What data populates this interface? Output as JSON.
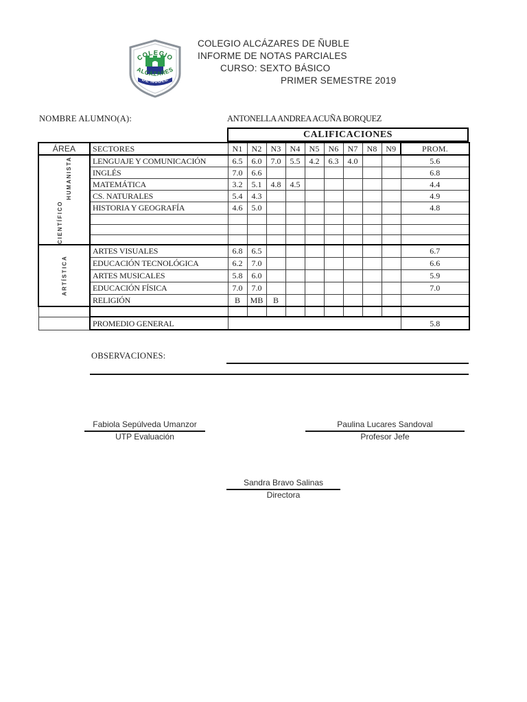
{
  "header": {
    "school": "COLEGIO ALCÁZARES DE ÑUBLE",
    "report_title": "INFORME DE NOTAS PARCIALES",
    "course": "CURSO: SEXTO BÁSICO",
    "semester": "PRIMER SEMESTRE 2019",
    "logo": {
      "arc_top": "COLEGIO",
      "arc_middle": "ALCÁZARES",
      "banner": "DE ÑUBLE",
      "green": "#1e7a34",
      "blue": "#27348b",
      "shield_border": "#8a9199"
    }
  },
  "student": {
    "label": "NOMBRE ALUMNO(A):",
    "name": "ANTONELLA ANDREA ACUÑA BORQUEZ"
  },
  "grades_table": {
    "title": "CALIFICACIONES",
    "columns": [
      "ÁREA",
      "SECTORES",
      "N1",
      "N2",
      "N3",
      "N4",
      "N5",
      "N6",
      "N7",
      "N8",
      "N9",
      "PROM."
    ],
    "sections": [
      {
        "area": "CIENTÍFICO HUMANISTA",
        "area_lines": [
          "CIENTÍFICO",
          "HUMANISTA"
        ],
        "rows": [
          {
            "sector": "LENGUAJE Y COMUNICACIÓN",
            "notes": [
              "6.5",
              "6.0",
              "7.0",
              "5.5",
              "4.2",
              "6.3",
              "4.0",
              "",
              ""
            ],
            "prom": "5.6"
          },
          {
            "sector": "INGLÉS",
            "notes": [
              "7.0",
              "6.6",
              "",
              "",
              "",
              "",
              "",
              "",
              ""
            ],
            "prom": "6.8"
          },
          {
            "sector": "MATEMÁTICA",
            "notes": [
              "3.2",
              "5.1",
              "4.8",
              "4.5",
              "",
              "",
              "",
              "",
              ""
            ],
            "prom": "4.4"
          },
          {
            "sector": "CS. NATURALES",
            "notes": [
              "5.4",
              "4.3",
              "",
              "",
              "",
              "",
              "",
              "",
              ""
            ],
            "prom": "4.9"
          },
          {
            "sector": "HISTORIA Y GEOGRAFÍA",
            "notes": [
              "4.6",
              "5.0",
              "",
              "",
              "",
              "",
              "",
              "",
              ""
            ],
            "prom": "4.8"
          }
        ],
        "empty_rows": 3
      },
      {
        "area": "ARTÍSTICA",
        "area_lines": [
          "ARTÍSTICA"
        ],
        "rows": [
          {
            "sector": "ARTES VISUALES",
            "notes": [
              "6.8",
              "6.5",
              "",
              "",
              "",
              "",
              "",
              "",
              ""
            ],
            "prom": "6.7"
          },
          {
            "sector": "EDUCACIÓN TECNOLÓGICA",
            "notes": [
              "6.2",
              "7.0",
              "",
              "",
              "",
              "",
              "",
              "",
              ""
            ],
            "prom": "6.6"
          },
          {
            "sector": "ARTES MUSICALES",
            "notes": [
              "5.8",
              "6.0",
              "",
              "",
              "",
              "",
              "",
              "",
              ""
            ],
            "prom": "5.9"
          },
          {
            "sector": "EDUCACIÓN FÍSICA",
            "notes": [
              "7.0",
              "7.0",
              "",
              "",
              "",
              "",
              "",
              "",
              ""
            ],
            "prom": "7.0"
          },
          {
            "sector": "RELIGIÓN",
            "notes": [
              "B",
              "MB",
              "B",
              "",
              "",
              "",
              "",
              "",
              ""
            ],
            "prom": ""
          }
        ],
        "empty_rows": 0
      }
    ],
    "summary": {
      "label": "PROMEDIO GENERAL",
      "value": "5.8"
    }
  },
  "observations": {
    "label": "OBSERVACIONES:"
  },
  "signatures": [
    {
      "name": "Fabiola Sepúlveda Umanzor",
      "role": "UTP Evaluación"
    },
    {
      "name": "Paulina Lucares Sandoval",
      "role": "Profesor Jefe"
    },
    {
      "name": "Sandra Bravo Salinas",
      "role": "Directora"
    }
  ]
}
